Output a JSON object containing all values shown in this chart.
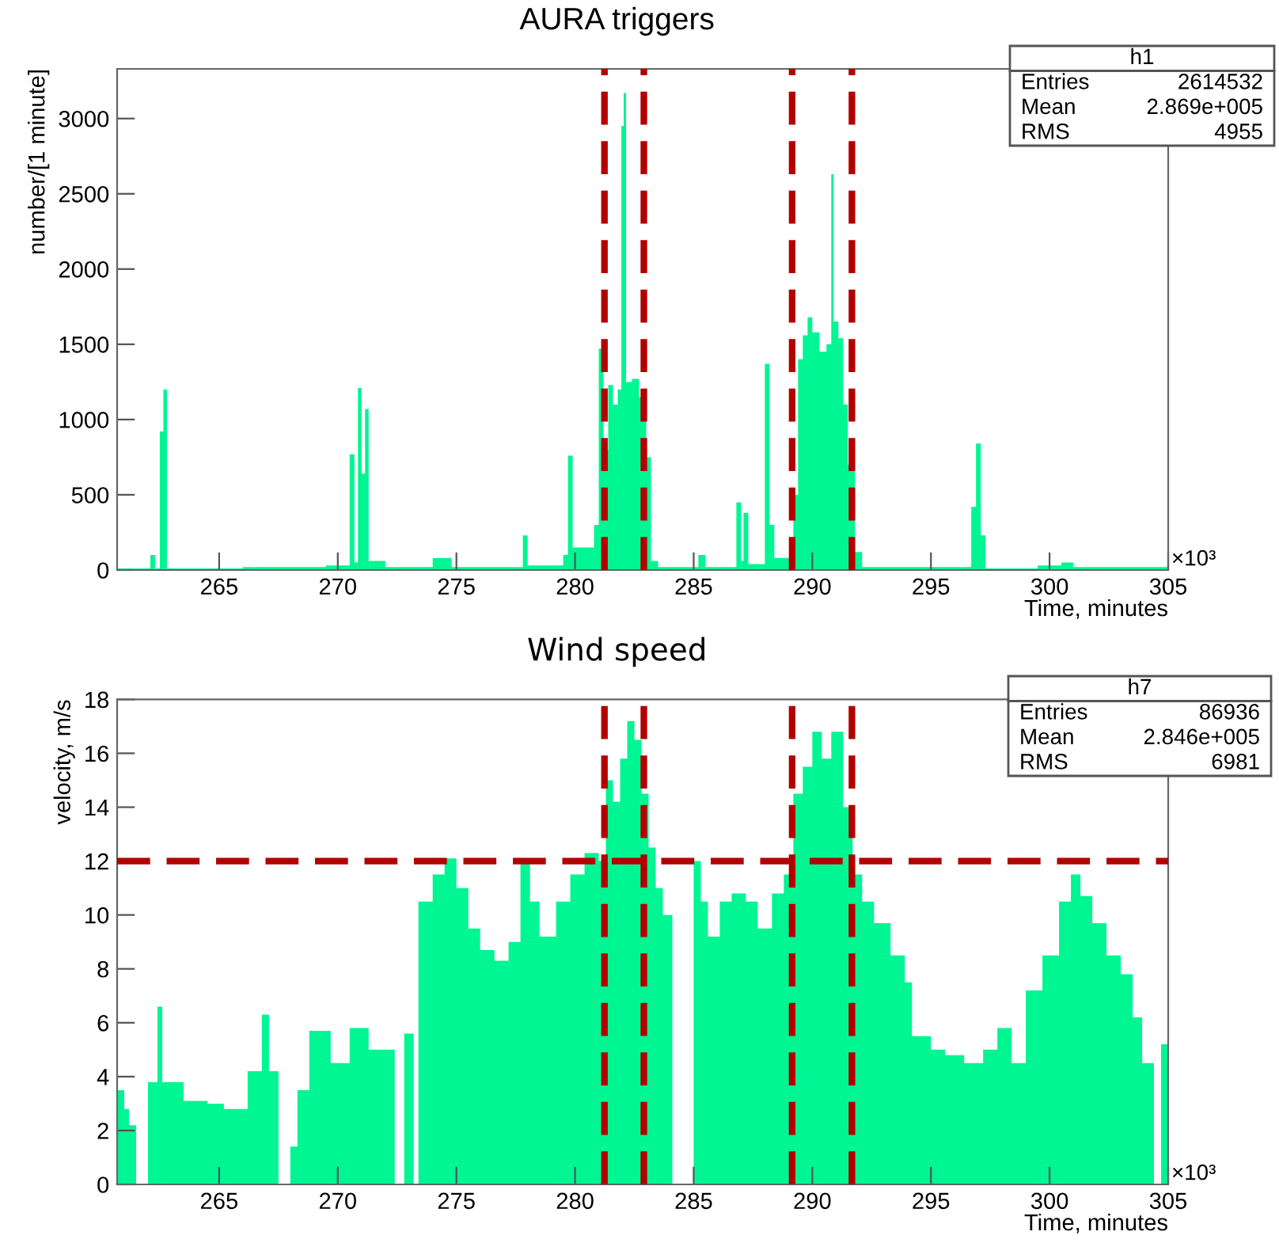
{
  "chart_data": [
    {
      "type": "histogram",
      "title": "AURA triggers",
      "xlabel": "Time, minutes",
      "ylabel": "number/[1 minute]",
      "color": "#00f593",
      "bins": [
        260.7,
        262.1,
        262.3,
        262.5,
        262.65,
        262.8,
        266,
        269.5,
        270.5,
        270.7,
        270.85,
        271.0,
        271.15,
        271.3,
        272,
        274,
        274.8,
        277.8,
        278.0,
        279.5,
        279.7,
        279.9,
        280.8,
        281.0,
        281.2,
        281.4,
        281.6,
        281.8,
        281.95,
        282.05,
        282.15,
        282.4,
        282.7,
        283.0,
        283.2,
        283.5,
        285.2,
        285.5,
        286.8,
        287.0,
        287.1,
        287.3,
        288.0,
        288.2,
        288.4,
        289.2,
        289.4,
        289.6,
        289.8,
        290.0,
        290.3,
        290.6,
        290.8,
        290.9,
        291.1,
        291.3,
        291.5,
        291.8,
        292.1,
        296.7,
        296.9,
        297.1,
        297.3,
        299.5,
        300.5,
        301.0,
        305.0
      ],
      "values": [
        10,
        100,
        10,
        920,
        1200,
        10,
        20,
        30,
        770,
        50,
        1210,
        640,
        1070,
        60,
        20,
        80,
        20,
        230,
        30,
        100,
        760,
        150,
        300,
        1470,
        800,
        1230,
        1100,
        1200,
        2950,
        3170,
        1250,
        1270,
        1150,
        750,
        60,
        20,
        100,
        20,
        450,
        60,
        380,
        40,
        1370,
        300,
        80,
        500,
        1400,
        1560,
        1680,
        1580,
        1450,
        1500,
        2630,
        1650,
        1540,
        1100,
        700,
        120,
        20,
        420,
        840,
        230,
        10,
        30,
        50,
        20
      ],
      "xlim": [
        260.7,
        305
      ],
      "xticks": [
        265,
        270,
        275,
        280,
        285,
        290,
        295,
        300,
        305
      ],
      "ylim": [
        0,
        3330
      ],
      "yticks": [
        0,
        500,
        1000,
        1500,
        2000,
        2500,
        3000
      ],
      "ref_lines": [
        {
          "axis": "x",
          "value": 281.24,
          "color": "#b30000",
          "line_style": "dashed"
        },
        {
          "axis": "x",
          "value": 282.9,
          "color": "#b30000",
          "line_style": "dashed"
        },
        {
          "axis": "x",
          "value": 289.15,
          "color": "#b30000",
          "line_style": "dashed"
        },
        {
          "axis": "x",
          "value": 291.67,
          "color": "#b30000",
          "line_style": "dashed"
        }
      ],
      "annotations": [
        "×10³",
        "h1",
        "Entries",
        "2614532",
        "Mean",
        "2.869e+005",
        "RMS",
        "4955"
      ],
      "grid": false
    },
    {
      "type": "histogram",
      "title": "Wind speed",
      "xlabel": "Time, minutes",
      "ylabel": "velocity, m/s",
      "color": "#00f593",
      "bins": [
        260.7,
        261.0,
        261.2,
        261.5,
        262.0,
        262.4,
        262.6,
        263.5,
        264.5,
        265.2,
        266.2,
        266.8,
        267.1,
        267.5,
        268.0,
        268.3,
        268.8,
        269.7,
        270.5,
        271.3,
        272.4,
        272.8,
        273.2,
        273.4,
        274.0,
        274.5,
        275.0,
        275.5,
        276.0,
        276.6,
        277.2,
        277.7,
        278.1,
        278.5,
        279.2,
        279.8,
        280.4,
        281.0,
        281.3,
        281.6,
        281.9,
        282.2,
        282.5,
        282.8,
        283.1,
        283.4,
        283.7,
        284.1,
        285.0,
        285.3,
        285.6,
        286.1,
        286.6,
        287.2,
        287.7,
        288.3,
        288.8,
        289.2,
        289.6,
        290.0,
        290.4,
        290.8,
        291.3,
        291.7,
        292.1,
        292.6,
        293.3,
        293.9,
        294.2,
        295.0,
        295.6,
        296.4,
        297.2,
        297.8,
        298.4,
        299.0,
        299.7,
        300.4,
        300.9,
        301.3,
        301.8,
        302.4,
        303.0,
        303.5,
        303.9,
        304.4,
        304.7,
        305.0
      ],
      "values": [
        3.5,
        2.8,
        2.2,
        0,
        3.8,
        6.6,
        3.8,
        3.1,
        3.0,
        2.8,
        4.2,
        6.3,
        4.2,
        0,
        1.4,
        3.5,
        5.7,
        4.5,
        5.8,
        5.0,
        0,
        5.6,
        0,
        10.5,
        11.5,
        12.1,
        11.0,
        9.5,
        8.7,
        8.3,
        9.0,
        11.9,
        10.5,
        9.2,
        10.5,
        11.5,
        12.3,
        12.0,
        15.0,
        14.2,
        15.8,
        17.2,
        16.5,
        14.5,
        12.5,
        11.0,
        10.0,
        0,
        12.0,
        10.5,
        9.2,
        10.5,
        10.8,
        10.5,
        9.5,
        10.8,
        11.5,
        14.5,
        15.5,
        16.8,
        15.8,
        16.8,
        14.0,
        11.5,
        10.5,
        9.7,
        8.5,
        7.5,
        5.5,
        5.0,
        4.8,
        4.5,
        5.0,
        5.8,
        4.5,
        7.2,
        8.5,
        10.5,
        11.5,
        10.7,
        9.7,
        8.5,
        7.8,
        6.2,
        4.5,
        0,
        5.2
      ],
      "xlim": [
        260.7,
        305
      ],
      "xticks": [
        265,
        270,
        275,
        280,
        285,
        290,
        295,
        300,
        305
      ],
      "ylim": [
        0,
        18
      ],
      "yticks": [
        0,
        2,
        4,
        6,
        8,
        10,
        12,
        14,
        16,
        18
      ],
      "ref_lines": [
        {
          "axis": "x",
          "value": 281.24,
          "color": "#b30000",
          "line_style": "dashed"
        },
        {
          "axis": "x",
          "value": 282.9,
          "color": "#b30000",
          "line_style": "dashed"
        },
        {
          "axis": "x",
          "value": 289.15,
          "color": "#b30000",
          "line_style": "dashed"
        },
        {
          "axis": "x",
          "value": 291.67,
          "color": "#b30000",
          "line_style": "dashed"
        },
        {
          "axis": "y",
          "value": 12,
          "color": "#b30000",
          "line_style": "dashed"
        }
      ],
      "annotations": [
        "×10³",
        "h7",
        "Entries",
        "86936",
        "Mean",
        "2.846e+005",
        "RMS",
        "6981"
      ],
      "grid": false
    }
  ]
}
